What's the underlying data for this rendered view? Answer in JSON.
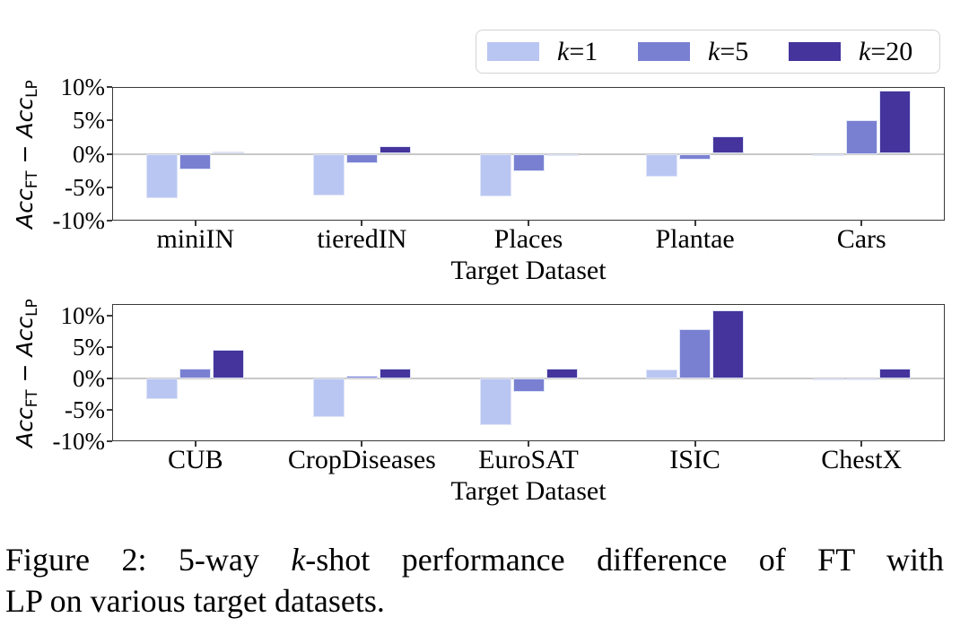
{
  "figure": {
    "caption": {
      "line1_pre": "Figure 2: 5-way ",
      "line1_italic": "k",
      "line1_post": "-shot performance difference of FT with",
      "line2": "LP on various target datasets."
    }
  },
  "legend": {
    "entries": [
      {
        "var": "k",
        "rest": "=1",
        "color": "#bac6f2"
      },
      {
        "var": "k",
        "rest": "=5",
        "color": "#7a80d1"
      },
      {
        "var": "k",
        "rest": "=20",
        "color": "#45349c"
      }
    ]
  },
  "colors": {
    "k1": "#bac6f2",
    "k5": "#7a80d1",
    "k20": "#45349c",
    "zero_line": "#c8c8c8",
    "frame": "#3a3a3a"
  },
  "chart_data": [
    {
      "type": "bar",
      "categories": [
        "miniIN",
        "tieredIN",
        "Places",
        "Plantae",
        "Cars"
      ],
      "series": [
        {
          "name": "k=1",
          "color": "#bac6f2",
          "values": [
            -6.7,
            -6.3,
            -6.4,
            -3.4,
            -0.3
          ]
        },
        {
          "name": "k=5",
          "color": "#7a80d1",
          "values": [
            -2.3,
            -1.4,
            -2.6,
            -0.9,
            5.0
          ]
        },
        {
          "name": "k=20",
          "color": "#45349c",
          "values": [
            0.4,
            1.2,
            -0.3,
            2.6,
            9.5
          ]
        }
      ],
      "xlabel": "Target Dataset",
      "ylabel": "Acc_FT − Acc_LP",
      "ylabel_parts": {
        "acc1": "Acc",
        "sub1": "FT",
        "minus": " − ",
        "acc2": "Acc",
        "sub2": "LP"
      },
      "ytick_labels": [
        "10%",
        "5%",
        "0%",
        "-5%",
        "-10%"
      ],
      "ytick_values": [
        10,
        5,
        0,
        -5,
        -10
      ],
      "ylim": [
        -10,
        10
      ],
      "grid": false,
      "zero_line": true,
      "legend_position": "top-right-above"
    },
    {
      "type": "bar",
      "categories": [
        "CUB",
        "CropDiseases",
        "EuroSAT",
        "ISIC",
        "ChestX"
      ],
      "series": [
        {
          "name": "k=1",
          "color": "#bac6f2",
          "values": [
            -3.3,
            -6.1,
            -7.4,
            1.4,
            -0.3
          ]
        },
        {
          "name": "k=5",
          "color": "#7a80d1",
          "values": [
            1.5,
            0.4,
            -2.1,
            7.8,
            -0.1
          ]
        },
        {
          "name": "k=20",
          "color": "#45349c",
          "values": [
            4.6,
            1.5,
            1.5,
            10.8,
            1.6
          ]
        }
      ],
      "xlabel": "Target Dataset",
      "ylabel": "Acc_FT − Acc_LP",
      "ylabel_parts": {
        "acc1": "Acc",
        "sub1": "FT",
        "minus": " − ",
        "acc2": "Acc",
        "sub2": "LP"
      },
      "ytick_labels": [
        "10%",
        "5%",
        "0%",
        "-5%",
        "-10%"
      ],
      "ytick_values": [
        10,
        5,
        0,
        -5,
        -10
      ],
      "ylim": [
        -10,
        11.8
      ],
      "grid": false,
      "zero_line": true
    }
  ]
}
